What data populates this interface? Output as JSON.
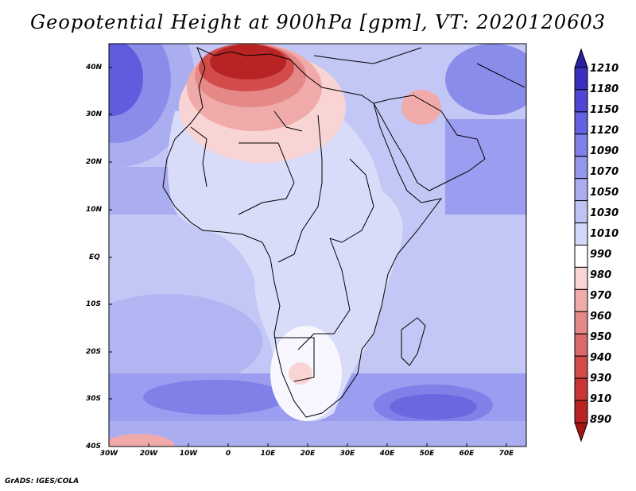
{
  "title": "Geopotential Height at 900hPa [gpm], VT: 2020120603",
  "credit": "GrADS: IGES/COLA",
  "map": {
    "lat_labels": [
      "40N",
      "30N",
      "20N",
      "10N",
      "EQ",
      "10S",
      "20S",
      "30S",
      "40S"
    ],
    "lon_labels": [
      "30W",
      "20W",
      "10W",
      "0",
      "10E",
      "20E",
      "30E",
      "40E",
      "50E",
      "60E",
      "70E"
    ]
  },
  "colorbar": {
    "levels": [
      "1210",
      "1180",
      "1150",
      "1120",
      "1090",
      "1070",
      "1050",
      "1030",
      "1010",
      "990",
      "980",
      "970",
      "960",
      "950",
      "940",
      "930",
      "910",
      "890"
    ],
    "colors": [
      "#2a1f9e",
      "#3a2fbf",
      "#4f46d6",
      "#6462e0",
      "#7f80e8",
      "#9597ec",
      "#aaaef0",
      "#bfc3f4",
      "#d4d8f8",
      "#ffffff",
      "#f8d4d4",
      "#f0aaaa",
      "#e48888",
      "#da6a6a",
      "#d24c4c",
      "#c83636",
      "#b82424",
      "#a51515"
    ]
  }
}
